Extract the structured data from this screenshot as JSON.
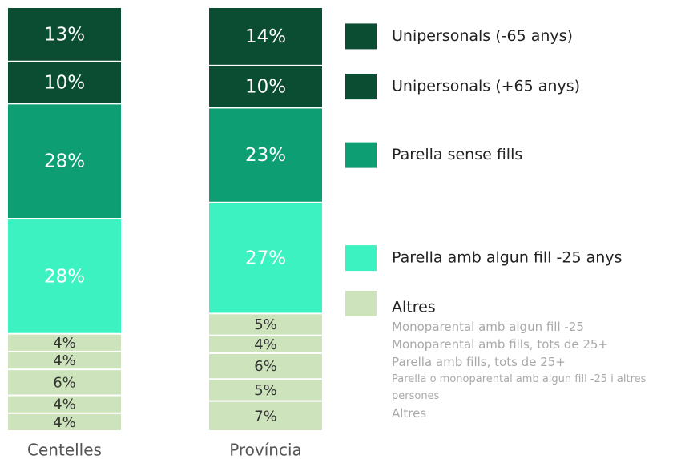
{
  "chart_data": {
    "type": "bar",
    "stacked": true,
    "categories": [
      "Centelles",
      "Província"
    ],
    "legend_group": "Altres",
    "series": [
      {
        "name": "Unipersonals (-65 anys)",
        "color": "#0b4d33",
        "values": [
          13,
          14
        ],
        "value_labels": [
          "13%",
          "14%"
        ]
      },
      {
        "name": "Unipersonals (+65 anys)",
        "color": "#0b4d33",
        "values": [
          10,
          10
        ],
        "value_labels": [
          "10%",
          "10%"
        ]
      },
      {
        "name": "Parella sense fills",
        "color": "#0e9e73",
        "values": [
          28,
          23
        ],
        "value_labels": [
          "28%",
          "23%"
        ]
      },
      {
        "name": "Parella amb algun fill -25 anys",
        "color": "#3df2c1",
        "values": [
          28,
          27
        ],
        "value_labels": [
          "28%",
          "27%"
        ]
      },
      {
        "name": "Monoparental amb algun fill -25",
        "color": "#cde3bb",
        "group": "Altres",
        "values": [
          4,
          5
        ],
        "value_labels": [
          "4%",
          "5%"
        ]
      },
      {
        "name": "Monoparental amb fills, tots de 25+",
        "color": "#cde3bb",
        "group": "Altres",
        "values": [
          4,
          4
        ],
        "value_labels": [
          "4%",
          "4%"
        ]
      },
      {
        "name": "Parella amb fills, tots de 25+",
        "color": "#cde3bb",
        "group": "Altres",
        "values": [
          6,
          6
        ],
        "value_labels": [
          "6%",
          "6%"
        ]
      },
      {
        "name": "Parella o monoparental amb algun fill -25 i altres persones",
        "color": "#cde3bb",
        "group": "Altres",
        "values": [
          4,
          5
        ],
        "value_labels": [
          "4%",
          "5%"
        ]
      },
      {
        "name": "Altres",
        "color": "#cde3bb",
        "group": "Altres",
        "values": [
          4,
          7
        ],
        "value_labels": [
          "4%",
          "7%"
        ]
      }
    ]
  }
}
